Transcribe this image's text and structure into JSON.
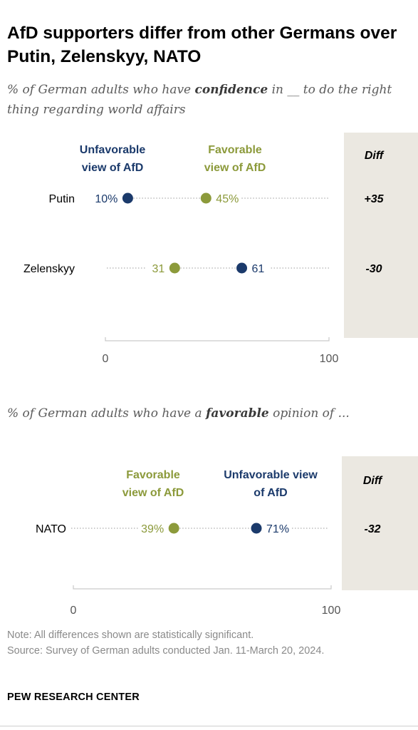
{
  "title": "AfD supporters differ from other Germans over Putin, Zelenskyy, NATO",
  "colors": {
    "unfavorable": "#1b3a6b",
    "favorable": "#8c9a3b",
    "diff_bg": "#ebe8e1"
  },
  "chart_data": [
    {
      "type": "dot",
      "subtitle_parts": [
        "% of German adults who have ",
        "confidence",
        " in __ to do the right thing regarding world affairs"
      ],
      "legend": {
        "unfavorable": "Unfavorable view of AfD",
        "favorable": "Favorable view of AfD"
      },
      "diff_header": "Diff",
      "xlim": [
        0,
        100
      ],
      "ticks": [
        "0",
        "100"
      ],
      "series": [
        {
          "key": "unfavorable",
          "name": "Unfavorable view of AfD"
        },
        {
          "key": "favorable",
          "name": "Favorable view of AfD"
        }
      ],
      "rows": [
        {
          "category": "Putin",
          "unfavorable": 10,
          "favorable": 45,
          "unfavorable_label": "10%",
          "favorable_label": "45%",
          "diff": "+35"
        },
        {
          "category": "Zelenskyy",
          "unfavorable": 61,
          "favorable": 31,
          "unfavorable_label": "61",
          "favorable_label": "31",
          "diff": "-30"
        }
      ]
    },
    {
      "type": "dot",
      "subtitle_parts": [
        "% of German adults who have a ",
        "favorable",
        " opinion of ..."
      ],
      "legend": {
        "unfavorable": "Unfavorable view of AfD",
        "favorable": "Favorable view of AfD"
      },
      "diff_header": "Diff",
      "xlim": [
        0,
        100
      ],
      "ticks": [
        "0",
        "100"
      ],
      "series": [
        {
          "key": "favorable",
          "name": "Favorable view of AfD"
        },
        {
          "key": "unfavorable",
          "name": "Unfavorable view of AfD"
        }
      ],
      "rows": [
        {
          "category": "NATO",
          "unfavorable": 71,
          "favorable": 39,
          "unfavorable_label": "71%",
          "favorable_label": "39%",
          "diff": "-32"
        }
      ]
    }
  ],
  "note": "Note: All differences shown are statistically significant.",
  "source": "Source: Survey of German adults conducted Jan. 11-March 20, 2024.",
  "branding": "PEW RESEARCH CENTER"
}
